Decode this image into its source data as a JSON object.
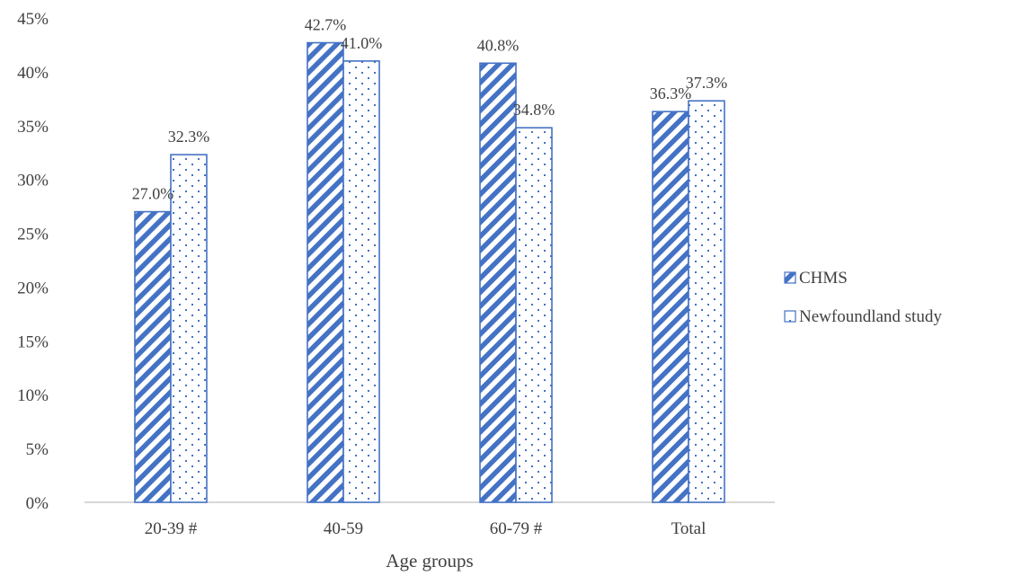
{
  "chart_data": {
    "type": "bar",
    "title": "",
    "xlabel": "Age groups",
    "ylabel": "",
    "categories": [
      "20-39 #",
      "40-59",
      "60-79 #",
      "Total"
    ],
    "series": [
      {
        "name": "CHMS",
        "values": [
          27.0,
          42.7,
          40.8,
          36.3
        ],
        "labels": [
          "27.0%",
          "42.7%",
          "40.8%",
          "36.3%"
        ],
        "pattern": "diagonal-stripes"
      },
      {
        "name": "Newfoundland study",
        "values": [
          32.3,
          41.0,
          34.8,
          37.3
        ],
        "labels": [
          "32.3%",
          "41.0%",
          "34.8%",
          "37.3%"
        ],
        "pattern": "dots"
      }
    ],
    "ylim": [
      0,
      45
    ],
    "yticks": [
      0,
      5,
      10,
      15,
      20,
      25,
      30,
      35,
      40,
      45
    ],
    "ytick_labels": [
      "0%",
      "5%",
      "10%",
      "15%",
      "20%",
      "25%",
      "30%",
      "35%",
      "40%",
      "45%"
    ],
    "grid": false,
    "legend_position": "right",
    "colors": {
      "bar_stroke": "#4472c4",
      "axis": "#bfbfbf",
      "text": "#404040"
    }
  }
}
